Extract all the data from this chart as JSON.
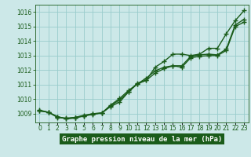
{
  "title": "Graphe pression niveau de la mer (hPa)",
  "hours": [
    0,
    1,
    2,
    3,
    4,
    5,
    6,
    7,
    8,
    9,
    10,
    11,
    12,
    13,
    14,
    15,
    16,
    17,
    18,
    19,
    20,
    21,
    22,
    23
  ],
  "series1": [
    1009.2,
    1009.1,
    1008.8,
    1008.65,
    1008.7,
    1008.85,
    1008.95,
    1009.05,
    1009.5,
    1009.8,
    1010.5,
    1011.1,
    1011.3,
    1012.2,
    1012.6,
    1013.1,
    1013.1,
    1013.0,
    1013.1,
    1013.5,
    1013.5,
    1014.5,
    1015.4,
    1016.1
  ],
  "series2": [
    1009.2,
    1009.1,
    1008.8,
    1008.65,
    1008.75,
    1008.85,
    1009.0,
    1009.05,
    1009.55,
    1009.95,
    1010.5,
    1011.05,
    1011.3,
    1011.8,
    1012.1,
    1012.3,
    1012.2,
    1012.85,
    1012.95,
    1013.0,
    1013.0,
    1013.35,
    1015.0,
    1015.3
  ],
  "series3": [
    1009.25,
    1009.1,
    1008.75,
    1008.7,
    1008.75,
    1008.9,
    1009.0,
    1009.05,
    1009.6,
    1010.05,
    1010.6,
    1011.05,
    1011.45,
    1011.95,
    1012.2,
    1012.3,
    1012.3,
    1012.95,
    1013.05,
    1013.1,
    1013.05,
    1013.45,
    1015.1,
    1015.5
  ],
  "bg_color": "#cce8e8",
  "grid_color": "#99cccc",
  "line_color": "#1a5c1a",
  "title_bg": "#1a5c1a",
  "title_fg": "#ffffff",
  "tick_color": "#1a5c1a",
  "ylim_min": 1008.4,
  "ylim_max": 1016.5,
  "yticks": [
    1009,
    1010,
    1011,
    1012,
    1013,
    1014,
    1015,
    1016
  ],
  "marker": "+",
  "markersize": 4.5,
  "linewidth": 1.0,
  "tick_fontsize": 5.5,
  "xlabel_fontsize": 6.5
}
